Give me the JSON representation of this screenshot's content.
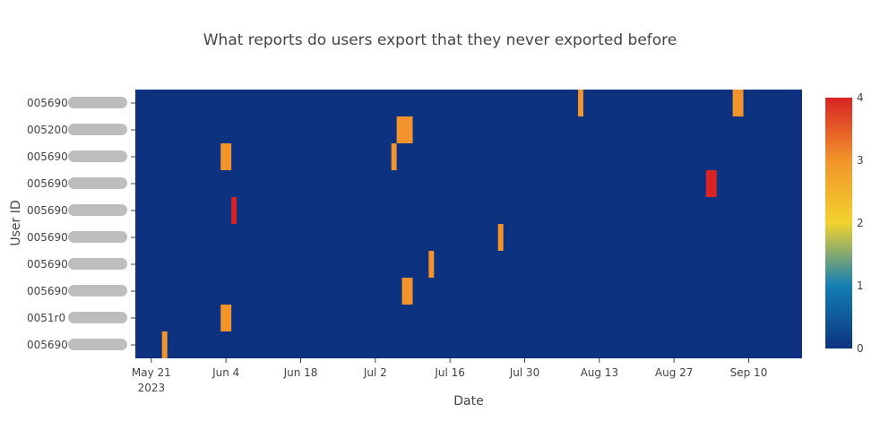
{
  "chart_data": {
    "type": "heatmap",
    "title": "What reports do users export that they never exported before",
    "xlabel": "Date",
    "ylabel": "User ID",
    "x_ticks": [
      "May 21",
      "Jun 4",
      "Jun 18",
      "Jul 2",
      "Jul 16",
      "Jul 30",
      "Aug 13",
      "Aug 27",
      "Sep 10"
    ],
    "x_tick_year": "2023",
    "x_tick_dates": [
      "2023-05-21",
      "2023-06-04",
      "2023-06-18",
      "2023-07-02",
      "2023-07-16",
      "2023-07-30",
      "2023-08-13",
      "2023-08-27",
      "2023-09-10"
    ],
    "x_range": [
      "2023-05-18",
      "2023-09-20"
    ],
    "y_categories": [
      "005690",
      "0051r0",
      "005690",
      "005690",
      "005690",
      "005690",
      "005690",
      "005690",
      "005200",
      "005690"
    ],
    "background_value": 0,
    "colorscale": {
      "min": 0,
      "max": 4,
      "ticks": [
        "0",
        "1",
        "2",
        "3",
        "4"
      ],
      "stops": [
        {
          "v": 0,
          "color": "#0d3380"
        },
        {
          "v": 0.25,
          "color": "#127fb3"
        },
        {
          "v": 0.5,
          "color": "#f2d22e"
        },
        {
          "v": 0.75,
          "color": "#f2942b"
        },
        {
          "v": 1,
          "color": "#d92424"
        }
      ]
    },
    "cells": [
      {
        "row": 0,
        "start": "2023-05-23",
        "end": "2023-05-24",
        "value": 3
      },
      {
        "row": 1,
        "start": "2023-06-03",
        "end": "2023-06-05",
        "value": 3
      },
      {
        "row": 2,
        "start": "2023-07-07",
        "end": "2023-07-09",
        "value": 3
      },
      {
        "row": 3,
        "start": "2023-07-12",
        "end": "2023-07-13",
        "value": 3
      },
      {
        "row": 4,
        "start": "2023-07-25",
        "end": "2023-07-26",
        "value": 3
      },
      {
        "row": 5,
        "start": "2023-06-05",
        "end": "2023-06-06",
        "value": 4
      },
      {
        "row": 6,
        "start": "2023-09-02",
        "end": "2023-09-04",
        "value": 4
      },
      {
        "row": 7,
        "start": "2023-06-03",
        "end": "2023-06-05",
        "value": 3
      },
      {
        "row": 7,
        "start": "2023-07-05",
        "end": "2023-07-06",
        "value": 3
      },
      {
        "row": 8,
        "start": "2023-07-06",
        "end": "2023-07-09",
        "value": 3
      },
      {
        "row": 9,
        "start": "2023-08-09",
        "end": "2023-08-10",
        "value": 3
      },
      {
        "row": 9,
        "start": "2023-09-07",
        "end": "2023-09-09",
        "value": 3
      }
    ]
  }
}
